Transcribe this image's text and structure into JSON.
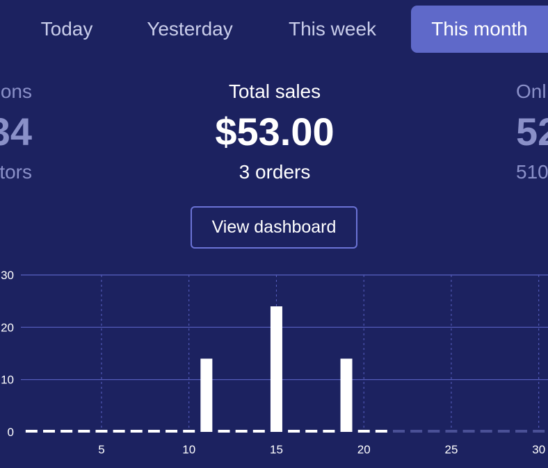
{
  "tabs": [
    {
      "label": "Today",
      "active": false
    },
    {
      "label": "Yesterday",
      "active": false
    },
    {
      "label": "This week",
      "active": false
    },
    {
      "label": "This month",
      "active": true
    }
  ],
  "stats": {
    "left": {
      "label": "ons",
      "value": "34",
      "sub": "tors"
    },
    "center": {
      "label": "Total sales",
      "value": "$53.00",
      "sub": "3 orders"
    },
    "right": {
      "label": "Onl",
      "value": "52",
      "sub": "510"
    }
  },
  "dashboard_button": "View dashboard",
  "colors": {
    "background": "#1c2260",
    "accent": "#5f69c9",
    "button_border": "#6b73d6",
    "bar": "#ffffff",
    "future_bar": "#4a5096"
  },
  "chart_data": {
    "type": "bar",
    "x": [
      1,
      2,
      3,
      4,
      5,
      6,
      7,
      8,
      9,
      10,
      11,
      12,
      13,
      14,
      15,
      16,
      17,
      18,
      19,
      20,
      21,
      22,
      23,
      24,
      25,
      26,
      27,
      28,
      29,
      30,
      31
    ],
    "values": [
      0,
      0,
      0,
      0,
      0,
      0,
      0,
      0,
      0,
      0,
      14,
      0,
      0,
      0,
      24,
      0,
      0,
      0,
      14,
      0,
      0,
      0,
      0,
      0,
      0,
      0,
      0,
      0,
      0,
      0,
      0
    ],
    "future_from_day": 22,
    "ylim": [
      0,
      30
    ],
    "yticks": [
      "0",
      "10",
      "20",
      "30"
    ],
    "xticks": [
      "5",
      "10",
      "15",
      "20",
      "25",
      "30"
    ],
    "xtick_values": [
      5,
      10,
      15,
      20,
      25,
      30
    ],
    "grid": true
  }
}
